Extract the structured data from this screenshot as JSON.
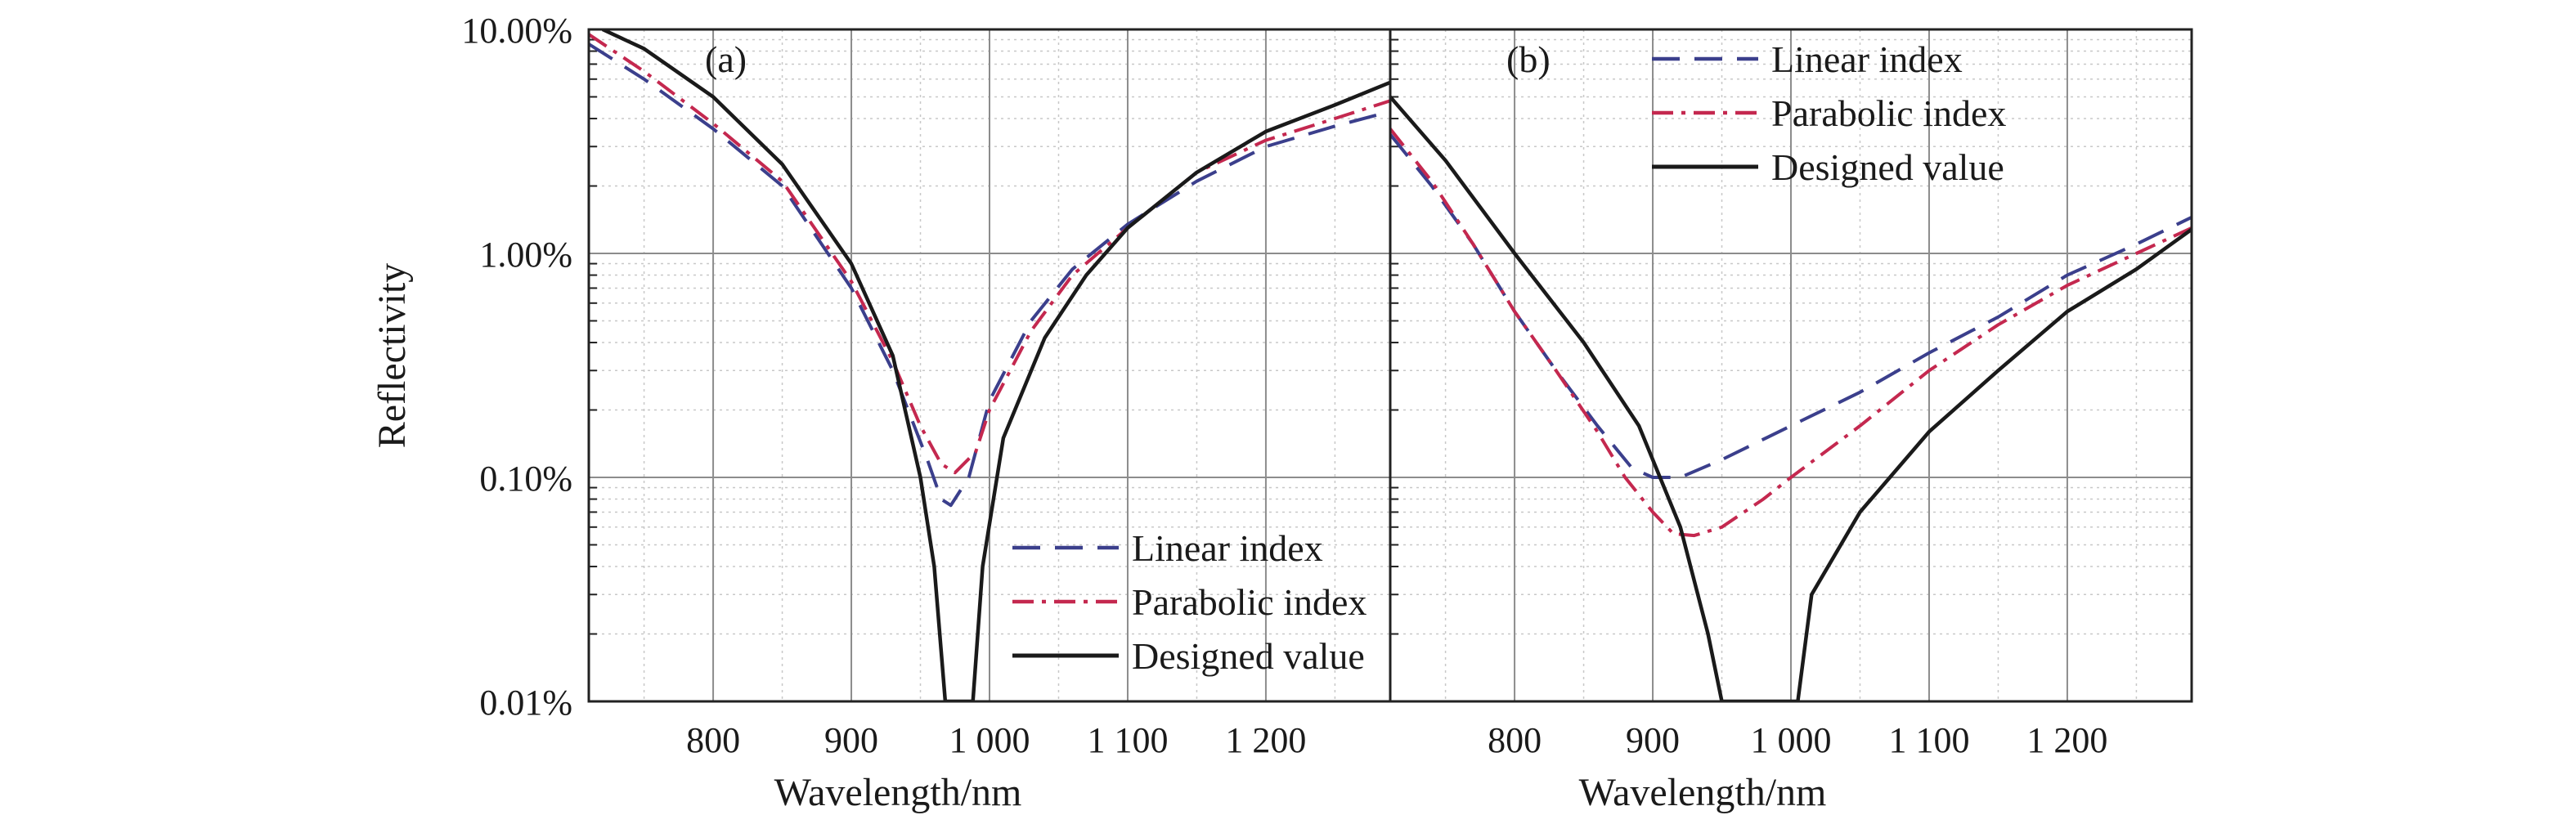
{
  "chart_data": {
    "type": "line",
    "x_axis": {
      "label": "Wavelength/nm",
      "range": [
        710,
        1290
      ],
      "ticks": [
        800,
        900,
        1000,
        1100,
        1200
      ],
      "tick_labels": [
        "800",
        "900",
        "1 000",
        "1 100",
        "1 200"
      ]
    },
    "y_axis": {
      "label": "Reflectivity",
      "scale": "log",
      "range": [
        0.01,
        10
      ],
      "ticks": [
        0.01,
        0.1,
        1,
        10
      ],
      "tick_labels": [
        "0.01%",
        "0.10%",
        "1.00%",
        "10.00%"
      ]
    },
    "grid": true,
    "panels": [
      {
        "label": "(a)",
        "legend_position": "bottom-right",
        "series": [
          {
            "name": "Linear index",
            "style": "dashed",
            "color": "#3b3f8c",
            "points": [
              [
                710,
                8.6
              ],
              [
                750,
                6.0
              ],
              [
                800,
                3.6
              ],
              [
                850,
                2.0
              ],
              [
                900,
                0.7
              ],
              [
                930,
                0.3
              ],
              [
                955,
                0.12
              ],
              [
                965,
                0.08
              ],
              [
                972,
                0.075
              ],
              [
                985,
                0.1
              ],
              [
                1000,
                0.22
              ],
              [
                1030,
                0.5
              ],
              [
                1060,
                0.85
              ],
              [
                1100,
                1.35
              ],
              [
                1150,
                2.1
              ],
              [
                1200,
                3.0
              ],
              [
                1250,
                3.7
              ],
              [
                1290,
                4.3
              ]
            ]
          },
          {
            "name": "Parabolic index",
            "style": "dash-dot",
            "color": "#c4284f",
            "points": [
              [
                710,
                9.5
              ],
              [
                750,
                6.5
              ],
              [
                800,
                3.8
              ],
              [
                850,
                2.1
              ],
              [
                900,
                0.75
              ],
              [
                930,
                0.33
              ],
              [
                950,
                0.17
              ],
              [
                965,
                0.115
              ],
              [
                975,
                0.105
              ],
              [
                990,
                0.13
              ],
              [
                1000,
                0.2
              ],
              [
                1030,
                0.45
              ],
              [
                1060,
                0.8
              ],
              [
                1100,
                1.3
              ],
              [
                1150,
                2.3
              ],
              [
                1200,
                3.2
              ],
              [
                1250,
                4.0
              ],
              [
                1290,
                4.8
              ]
            ]
          },
          {
            "name": "Designed value",
            "style": "solid",
            "color": "#1a1a1a",
            "points": [
              [
                720,
                10
              ],
              [
                750,
                8.2
              ],
              [
                800,
                5.0
              ],
              [
                850,
                2.5
              ],
              [
                900,
                0.9
              ],
              [
                930,
                0.35
              ],
              [
                950,
                0.1
              ],
              [
                960,
                0.04
              ],
              [
                968,
                0.01
              ],
              [
                988,
                0.01
              ],
              [
                995,
                0.04
              ],
              [
                1010,
                0.15
              ],
              [
                1040,
                0.42
              ],
              [
                1070,
                0.8
              ],
              [
                1100,
                1.3
              ],
              [
                1150,
                2.3
              ],
              [
                1200,
                3.5
              ],
              [
                1250,
                4.6
              ],
              [
                1290,
                5.8
              ]
            ]
          }
        ]
      },
      {
        "label": "(b)",
        "legend_position": "top-right",
        "series": [
          {
            "name": "Linear index",
            "style": "dashed",
            "color": "#3b3f8c",
            "points": [
              [
                710,
                3.4
              ],
              [
                740,
                2.0
              ],
              [
                770,
                1.1
              ],
              [
                800,
                0.55
              ],
              [
                830,
                0.3
              ],
              [
                860,
                0.17
              ],
              [
                885,
                0.11
              ],
              [
                900,
                0.1
              ],
              [
                920,
                0.1
              ],
              [
                950,
                0.12
              ],
              [
                1000,
                0.17
              ],
              [
                1050,
                0.24
              ],
              [
                1100,
                0.36
              ],
              [
                1150,
                0.52
              ],
              [
                1200,
                0.8
              ],
              [
                1250,
                1.1
              ],
              [
                1290,
                1.45
              ]
            ]
          },
          {
            "name": "Parabolic index",
            "style": "dash-dot",
            "color": "#c4284f",
            "points": [
              [
                710,
                3.6
              ],
              [
                740,
                2.1
              ],
              [
                770,
                1.1
              ],
              [
                800,
                0.55
              ],
              [
                830,
                0.3
              ],
              [
                860,
                0.16
              ],
              [
                880,
                0.1
              ],
              [
                900,
                0.07
              ],
              [
                915,
                0.056
              ],
              [
                930,
                0.055
              ],
              [
                950,
                0.06
              ],
              [
                980,
                0.08
              ],
              [
                1000,
                0.1
              ],
              [
                1050,
                0.17
              ],
              [
                1100,
                0.3
              ],
              [
                1150,
                0.48
              ],
              [
                1200,
                0.72
              ],
              [
                1250,
                1.0
              ],
              [
                1290,
                1.3
              ]
            ]
          },
          {
            "name": "Designed value",
            "style": "solid",
            "color": "#1a1a1a",
            "points": [
              [
                710,
                5.0
              ],
              [
                750,
                2.6
              ],
              [
                800,
                1.0
              ],
              [
                850,
                0.4
              ],
              [
                890,
                0.17
              ],
              [
                920,
                0.06
              ],
              [
                940,
                0.02
              ],
              [
                950,
                0.01
              ],
              [
                1005,
                0.01
              ],
              [
                1015,
                0.03
              ],
              [
                1050,
                0.07
              ],
              [
                1100,
                0.16
              ],
              [
                1150,
                0.3
              ],
              [
                1200,
                0.55
              ],
              [
                1250,
                0.85
              ],
              [
                1290,
                1.28
              ]
            ]
          }
        ]
      }
    ]
  }
}
